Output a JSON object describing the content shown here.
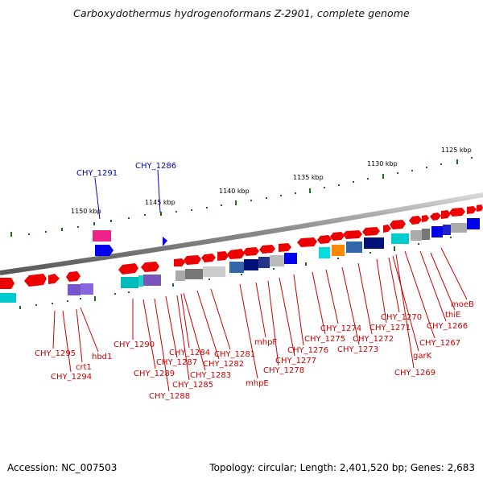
{
  "title": "Carboxydothermus hydrogenoformans Z-2901, complete genome",
  "footer": {
    "accession": "Accession: NC_007503",
    "summary": "Topology: circular; Length: 2,401,520 bp; Genes: 2,683"
  },
  "scale_labels": [
    "1125 kbp",
    "1130 kbp",
    "1135 kbp",
    "1140 kbp",
    "1145 kbp",
    "1150 kbp"
  ],
  "top_labels": [
    "CHY_1291",
    "CHY_1286"
  ],
  "gene_labels": [
    "CHY_1295",
    "CHY_1294",
    "crt1",
    "hbd1",
    "CHY_1290",
    "CHY_1289",
    "CHY_1288",
    "CHY_1287",
    "CHY_1285",
    "CHY_1284",
    "CHY_1283",
    "CHY_1282",
    "CHY_1281",
    "mhpE",
    "mhpF",
    "CHY_1278",
    "CHY_1277",
    "CHY_1276",
    "CHY_1275",
    "CHY_1274",
    "CHY_1273",
    "CHY_1272",
    "CHY_1271",
    "CHY_1270",
    "garK",
    "CHY_1269",
    "CHY_1267",
    "CHY_1266",
    "thiE",
    "moeB"
  ],
  "colors": {
    "label_red": "#cc0000",
    "label_blue": "#0000cc",
    "tick_green": "#1a6e1a",
    "backbone": "#8a8a8a",
    "gene_red": "#ee0000"
  }
}
